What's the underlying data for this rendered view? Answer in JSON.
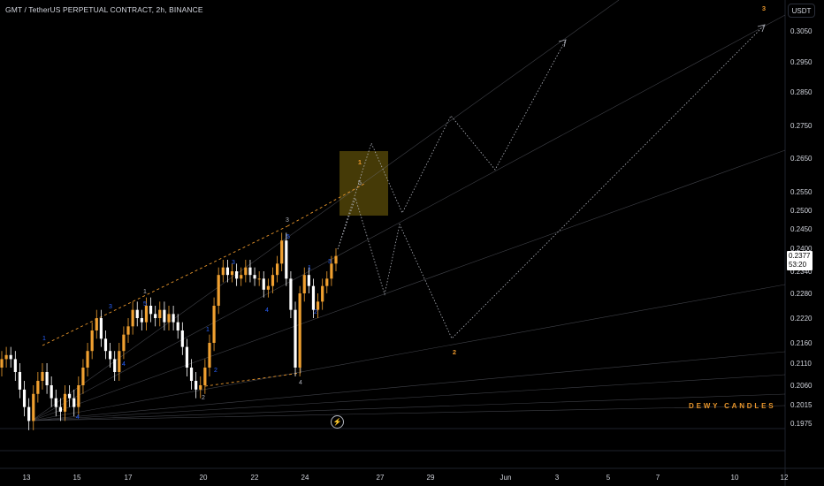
{
  "header": {
    "title": "GMT / TetherUS PERPETUAL CONTRACT, 2h, BINANCE"
  },
  "currency_button": "USDT",
  "last_price": {
    "value": "0.2377",
    "countdown": "53:20"
  },
  "brand": "DEWY CANDLES",
  "icons": {
    "bolt": "lightning-icon"
  },
  "colors": {
    "bull": "#f0a030",
    "bear": "#ffffff",
    "wave_label": "#2962ff",
    "orange_label": "#e8962c",
    "target_box": "#5c4d0a"
  },
  "chart_data": {
    "type": "candlestick",
    "y_ticks": [
      "0.3050",
      "0.2950",
      "0.2850",
      "0.2750",
      "0.2650",
      "0.2550",
      "0.2500",
      "0.2450",
      "0.2400",
      "0.2340",
      "0.2280",
      "0.2220",
      "0.2160",
      "0.2110",
      "0.2060",
      "0.2015",
      "0.1975"
    ],
    "x_ticks": [
      "13",
      "15",
      "17",
      "20",
      "22",
      "24",
      "27",
      "29",
      "Jun",
      "3",
      "5",
      "7",
      "10",
      "12"
    ],
    "series": [
      {
        "close": [
          0.212,
          0.213,
          0.212,
          0.209,
          0.205,
          0.201,
          0.198,
          0.204,
          0.207,
          0.209,
          0.206,
          0.203,
          0.201,
          0.2,
          0.204,
          0.203,
          0.201,
          0.206,
          0.21,
          0.214,
          0.219,
          0.222,
          0.217,
          0.214,
          0.212,
          0.209,
          0.214,
          0.218,
          0.22,
          0.224,
          0.222,
          0.221,
          0.225,
          0.223,
          0.222,
          0.224,
          0.221,
          0.223,
          0.221,
          0.219,
          0.215,
          0.21,
          0.207,
          0.205,
          0.206,
          0.21,
          0.216,
          0.225,
          0.233,
          0.235,
          0.233,
          0.234,
          0.232,
          0.233,
          0.235,
          0.233,
          0.232,
          0.232,
          0.229,
          0.23,
          0.233,
          0.236,
          0.242,
          0.232,
          0.224,
          0.21,
          0.228,
          0.233,
          0.23,
          0.224,
          0.226,
          0.23,
          0.232,
          0.236,
          0.238
        ]
      }
    ],
    "wave_labels_blue": [
      "1",
      "3",
      "4",
      "5",
      "1",
      "2",
      "3",
      "4",
      "5",
      "1",
      "2",
      "3",
      "4"
    ],
    "wave_labels_gray": [
      "1",
      "2",
      "3",
      "4",
      "5"
    ],
    "projection_labels": [
      "1",
      "2",
      "3"
    ]
  }
}
